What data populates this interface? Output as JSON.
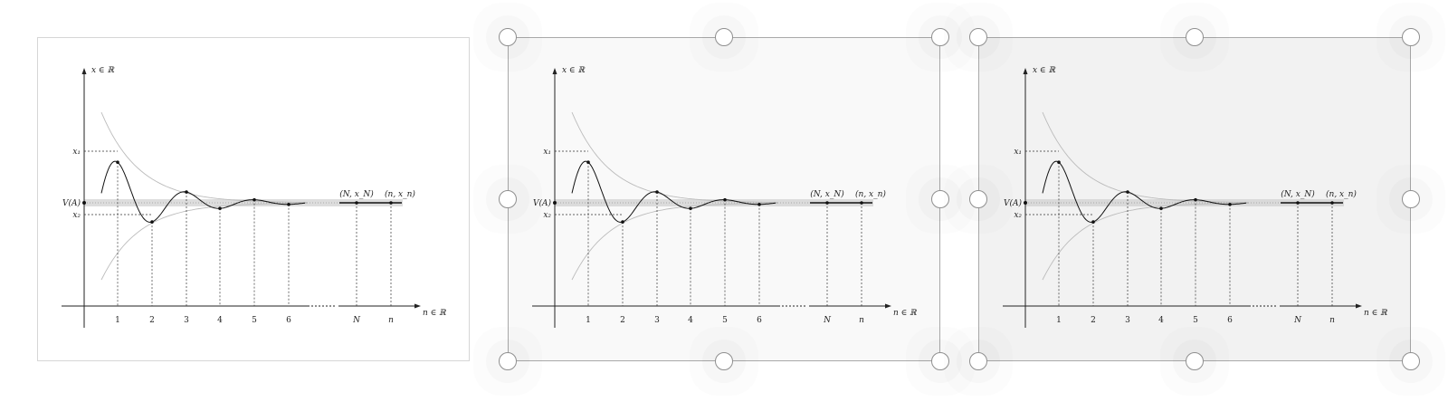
{
  "figure": {
    "y_axis_label": "x ∈ ℝ",
    "x_axis_label": "n ∈ ℝ",
    "x1_label": "x₁",
    "x2_label": "x₂",
    "va_label": "V(A)",
    "point_N_label": "(N, x_N)",
    "point_n_label": "(n, x_n)",
    "ticks": [
      "1",
      "2",
      "3",
      "4",
      "5",
      "6",
      "N",
      "n"
    ]
  },
  "panels": [
    {
      "state": "normal",
      "handles": false
    },
    {
      "state": "hover",
      "handles": true
    },
    {
      "state": "active",
      "handles": true
    }
  ],
  "colors": {
    "border_normal": "#d6d6d6",
    "border_selected": "#a9a9a9",
    "fill_hover": "#f9f9f9",
    "fill_active": "#f2f2f2",
    "handle_border": "#8f8f8f"
  }
}
